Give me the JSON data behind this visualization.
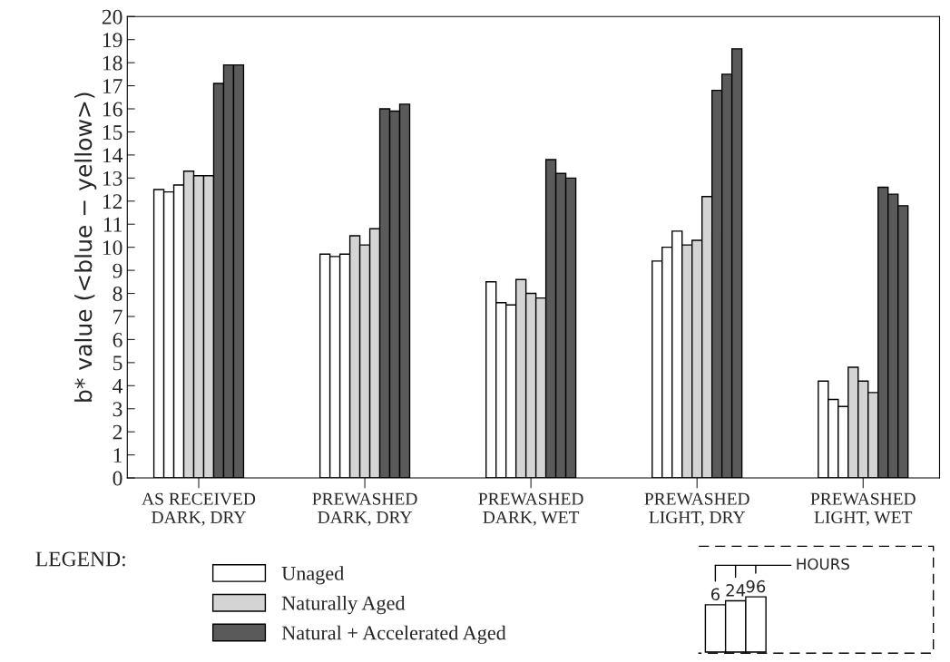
{
  "chart_data": {
    "type": "bar",
    "ylabel": "b* value (<blue − yellow>)",
    "legend_title": "LEGEND:",
    "legend": "bottom left",
    "categories": [
      "AS RECEIVED\nDARK, DRY",
      "PREWASHED\nDARK, DRY",
      "PREWASHED\nDARK, WET",
      "PREWASHED\nLIGHT, DRY",
      "PREWASHED\nLIGHT, WET"
    ],
    "series": [
      {
        "name": "Unaged",
        "color": "#ffffff",
        "values": [
          12.5,
          9.7,
          8.5,
          9.4,
          4.2
        ]
      },
      {
        "color": "#ffffff",
        "values": [
          12.4,
          9.6,
          7.6,
          10.0,
          3.4
        ]
      },
      {
        "color": "#ffffff",
        "values": [
          12.7,
          9.7,
          7.5,
          10.7,
          3.1
        ]
      },
      {
        "name": "Naturally Aged",
        "color": "#d4d4d4",
        "values": [
          13.3,
          10.5,
          8.6,
          10.1,
          4.8
        ]
      },
      {
        "color": "#d4d4d4",
        "values": [
          13.1,
          10.1,
          8.0,
          10.3,
          4.2
        ]
      },
      {
        "color": "#d4d4d4",
        "values": [
          13.1,
          10.8,
          7.8,
          12.2,
          3.7
        ]
      },
      {
        "name": "Natural + Accelerated Aged",
        "color": "#5a5a5a",
        "values": [
          17.1,
          16.0,
          13.8,
          16.8,
          12.6
        ]
      },
      {
        "color": "#5a5a5a",
        "values": [
          17.9,
          15.9,
          13.2,
          17.5,
          12.3
        ]
      },
      {
        "color": "#5a5a5a",
        "values": [
          17.9,
          16.2,
          13.0,
          18.6,
          11.8
        ]
      }
    ],
    "ylim": [
      0,
      20
    ],
    "yticks": [
      0,
      1,
      2,
      3,
      4,
      5,
      6,
      7,
      8,
      9,
      10,
      11,
      12,
      13,
      14,
      15,
      16,
      17,
      18,
      19,
      20
    ],
    "grid": false,
    "annotations": [
      "6",
      "24",
      "96",
      "HOURS"
    ]
  }
}
